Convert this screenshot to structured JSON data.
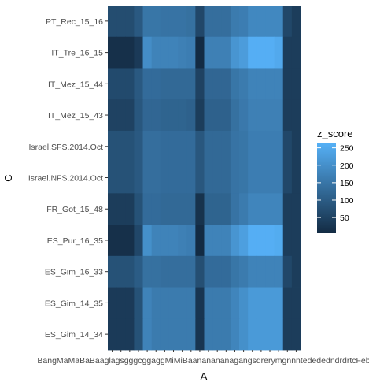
{
  "chart_data": {
    "type": "heatmap",
    "title": "",
    "xlabel": "A",
    "ylabel": "C",
    "x_tick_text": "BangMaMaBaBaaglagsgggcggaggMiMiBaananananagangsdrerymgnnntedededndrdrtcFeb",
    "x_count": 22,
    "y_categories": [
      "PT_Rec_15_16",
      "IT_Tre_16_15",
      "IT_Mez_15_44",
      "IT_Mez_15_43",
      "Israel.SFS.2014.Oct",
      "Israel.NFS.2014.Oct",
      "FR_Got_15_48",
      "ES_Pur_16_35",
      "ES_Gim_16_33",
      "ES_Gim_14_35",
      "ES_Gim_14_34"
    ],
    "values": [
      [
        70,
        70,
        70,
        95,
        150,
        150,
        145,
        145,
        145,
        140,
        60,
        135,
        135,
        135,
        160,
        165,
        185,
        185,
        185,
        185,
        60,
        40
      ],
      [
        15,
        15,
        15,
        35,
        195,
        175,
        175,
        175,
        170,
        165,
        5,
        170,
        170,
        170,
        210,
        225,
        260,
        260,
        260,
        250,
        40,
        40
      ],
      [
        65,
        65,
        65,
        95,
        130,
        130,
        125,
        125,
        125,
        125,
        50,
        120,
        120,
        120,
        150,
        160,
        175,
        175,
        175,
        175,
        40,
        40
      ],
      [
        50,
        50,
        50,
        90,
        120,
        120,
        115,
        115,
        115,
        110,
        40,
        110,
        110,
        110,
        140,
        155,
        170,
        170,
        170,
        170,
        40,
        40
      ],
      [
        80,
        80,
        80,
        95,
        135,
        135,
        130,
        130,
        130,
        130,
        90,
        125,
        125,
        125,
        145,
        150,
        165,
        165,
        165,
        165,
        60,
        40
      ],
      [
        80,
        80,
        80,
        95,
        135,
        135,
        130,
        130,
        130,
        130,
        90,
        125,
        125,
        125,
        145,
        150,
        165,
        165,
        165,
        165,
        60,
        40
      ],
      [
        40,
        40,
        40,
        80,
        130,
        130,
        125,
        125,
        125,
        125,
        20,
        115,
        115,
        115,
        145,
        160,
        180,
        180,
        180,
        180,
        40,
        40
      ],
      [
        15,
        15,
        15,
        60,
        200,
        175,
        175,
        175,
        170,
        165,
        5,
        175,
        175,
        175,
        210,
        230,
        260,
        260,
        260,
        255,
        40,
        40
      ],
      [
        80,
        80,
        80,
        100,
        140,
        140,
        135,
        135,
        135,
        135,
        75,
        130,
        130,
        130,
        150,
        160,
        175,
        175,
        175,
        175,
        60,
        40
      ],
      [
        35,
        35,
        35,
        80,
        175,
        160,
        160,
        160,
        160,
        160,
        25,
        160,
        160,
        160,
        180,
        200,
        220,
        220,
        220,
        220,
        40,
        40
      ],
      [
        35,
        35,
        35,
        80,
        175,
        160,
        160,
        160,
        160,
        160,
        25,
        160,
        160,
        160,
        180,
        200,
        220,
        220,
        220,
        220,
        40,
        40
      ]
    ],
    "legend": {
      "title": "z_score",
      "breaks": [
        50,
        100,
        150,
        200,
        250
      ],
      "range": [
        5,
        265
      ],
      "low_color": "#132B43",
      "high_color": "#56B1F7",
      "placement": "right"
    },
    "panel_background": "#EBEBEB",
    "grid": true
  }
}
